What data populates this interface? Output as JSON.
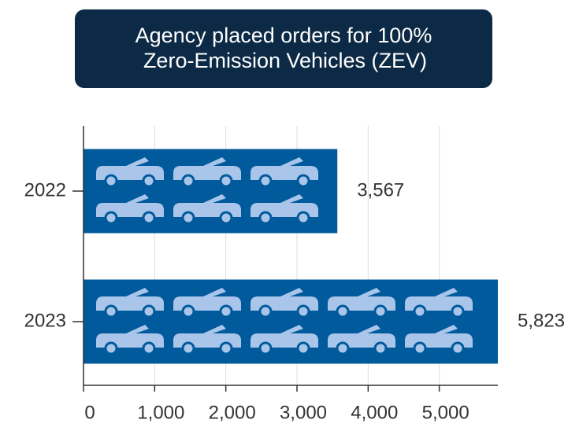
{
  "chart_data": {
    "type": "barh",
    "title": [
      "Agency placed orders for 100%",
      "Zero-Emission Vehicles (ZEV)"
    ],
    "categories": [
      "2022",
      "2023"
    ],
    "values": [
      3567,
      5823
    ],
    "value_labels": [
      "3,567",
      "5,823"
    ],
    "color": "#005a9c",
    "icon_color": "#a9c6ea",
    "xlim": [
      0,
      5823
    ],
    "xticks": [
      0,
      {
        "value": 1000,
        "label": "1,000"
      },
      {
        "value": 2000,
        "label": "2,000"
      },
      {
        "value": 3000,
        "label": "3,000"
      },
      {
        "value": 4000,
        "label": "4,000"
      },
      {
        "value": 5000,
        "label": "5,000"
      }
    ],
    "grid": true
  }
}
